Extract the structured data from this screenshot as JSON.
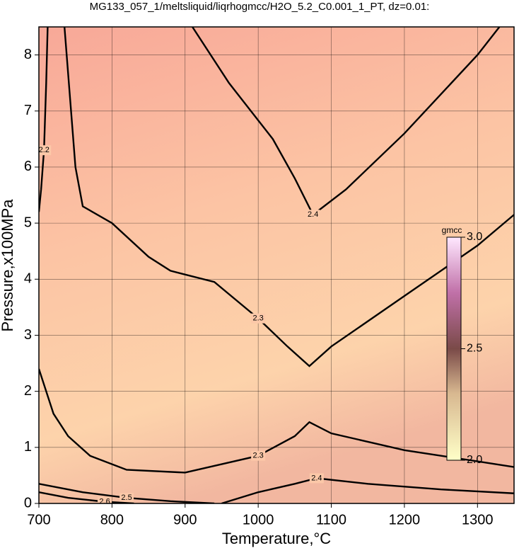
{
  "chart_data": {
    "type": "contour",
    "title": "MG133_057_1/meltsliquid/liqrhogmcc/H2O_5.2_C0.001_1_PT, dz=0.01:",
    "x_label": "Temperature,°C",
    "y_label": "Pressure,x100MPa",
    "xlim": [
      700,
      1350
    ],
    "ylim": [
      0,
      8.5
    ],
    "xticks": [
      700,
      800,
      900,
      1000,
      1100,
      1200,
      1300
    ],
    "yticks": [
      0,
      1,
      2,
      3,
      4,
      5,
      6,
      7,
      8
    ],
    "grid": true,
    "contours": [
      {
        "level": 2.4,
        "x": [
          910,
          960,
          1020,
          1050,
          1075,
          1120,
          1200,
          1300,
          1330
        ],
        "y": [
          8.5,
          7.5,
          6.5,
          5.8,
          5.15,
          5.6,
          6.6,
          8.0,
          8.5
        ]
      },
      {
        "level": 2.3,
        "x": [
          735,
          750,
          760,
          800,
          850,
          880,
          940,
          1000,
          1040,
          1070,
          1100,
          1200,
          1300,
          1350
        ],
        "y": [
          8.5,
          6.0,
          5.3,
          5.0,
          4.4,
          4.15,
          3.95,
          3.3,
          2.8,
          2.45,
          2.8,
          3.7,
          4.6,
          5.15
        ]
      },
      {
        "level": 2.3,
        "x": [
          700,
          720,
          740,
          770,
          820,
          900,
          1000,
          1050,
          1070,
          1100,
          1200,
          1300,
          1350
        ],
        "y": [
          2.4,
          1.6,
          1.2,
          0.85,
          0.6,
          0.55,
          0.85,
          1.2,
          1.45,
          1.25,
          0.95,
          0.75,
          0.65
        ]
      },
      {
        "level": 2.4,
        "x": [
          950,
          1000,
          1050,
          1080,
          1150,
          1250,
          1350
        ],
        "y": [
          0.0,
          0.2,
          0.35,
          0.45,
          0.35,
          0.25,
          0.18
        ]
      },
      {
        "level": 2.2,
        "x": [
          712,
          710,
          707,
          703,
          700
        ],
        "y": [
          8.5,
          7.5,
          6.3,
          5.6,
          5.2
        ]
      },
      {
        "level": 2.5,
        "x": [
          700,
          760,
          820,
          880,
          940
        ],
        "y": [
          0.35,
          0.2,
          0.1,
          0.04,
          0.0
        ]
      },
      {
        "level": 2.6,
        "x": [
          700,
          740,
          790,
          830
        ],
        "y": [
          0.2,
          0.1,
          0.03,
          0.0
        ]
      }
    ],
    "colorbar": {
      "title": "gmcc",
      "lim": [
        2,
        3
      ],
      "ticks": [
        {
          "value": 2,
          "label": "2.0"
        },
        2.5,
        {
          "value": 3,
          "label": "3.0"
        }
      ]
    }
  }
}
